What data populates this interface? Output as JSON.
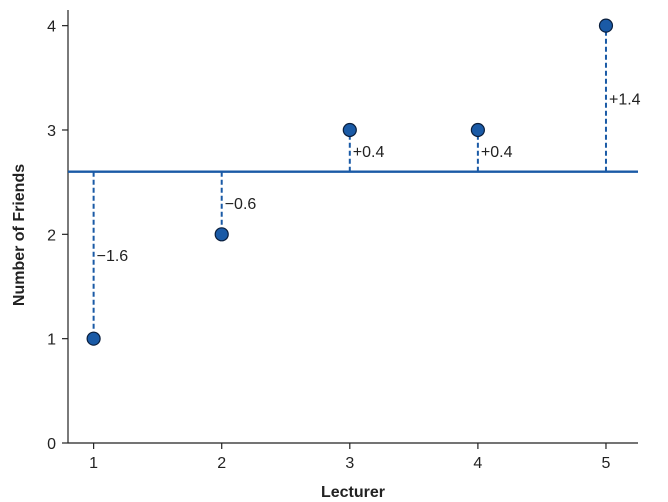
{
  "chart_data": {
    "type": "scatter",
    "xlabel": "Lecturer",
    "ylabel": "Number of Friends",
    "x": [
      1,
      2,
      3,
      4,
      5
    ],
    "y": [
      1,
      2,
      3,
      3,
      4
    ],
    "xticks": [
      "1",
      "2",
      "3",
      "4",
      "5"
    ],
    "yticks": [
      "0",
      "1",
      "2",
      "3",
      "4"
    ],
    "xlim": [
      0.8,
      5.25
    ],
    "ylim": [
      0,
      4.15
    ],
    "mean": 2.6,
    "deviation_labels": [
      "−1.6",
      "−0.6",
      "+0.4",
      "+0.4",
      "+1.4"
    ],
    "grid": false,
    "colors": {
      "line": "#1a5aa6",
      "marker_fill": "#1a5aa6",
      "marker_edge": "#0a1e3c",
      "axis": "#222222"
    }
  }
}
